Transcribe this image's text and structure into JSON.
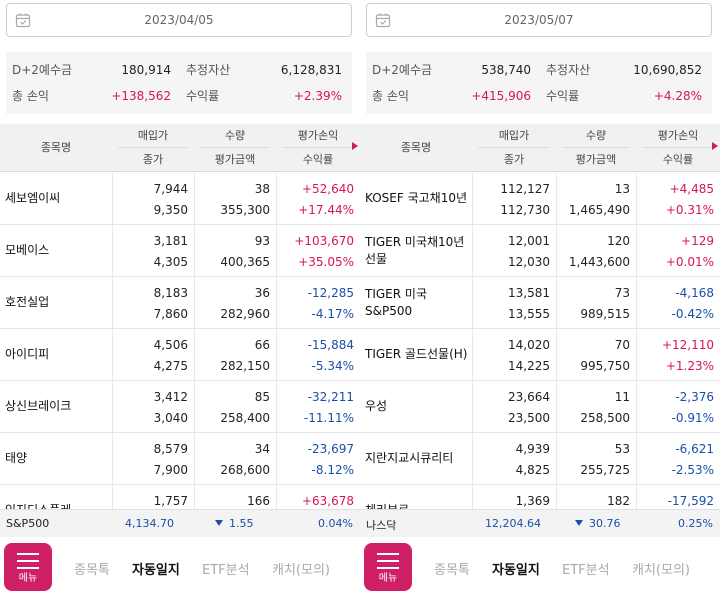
{
  "colors": {
    "positive": "#d7174f",
    "negative": "#1a4fa8",
    "menu": "#cf1f65"
  },
  "panels": [
    {
      "date": "2023/04/05",
      "summary": {
        "d2_label": "D+2예수금",
        "d2_value": "180,914",
        "asset_label": "추정자산",
        "asset_value": "6,128,831",
        "pl_label": "총 손익",
        "pl_value": "+138,562",
        "rate_label": "수익률",
        "rate_value": "+2.39%"
      },
      "headers": {
        "name": "종목명",
        "buy": "매입가",
        "close": "종가",
        "qty": "수량",
        "eval_amt": "평가금액",
        "eval_pl": "평가손익",
        "return": "수익률"
      },
      "rows": [
        {
          "name": "세보엠이씨",
          "buy": "7,944",
          "close": "9,350",
          "qty": "38",
          "eval_amt": "355,300",
          "pl": "+52,640",
          "rate": "+17.44%",
          "sign": "pos"
        },
        {
          "name": "모베이스",
          "buy": "3,181",
          "close": "4,305",
          "qty": "93",
          "eval_amt": "400,365",
          "pl": "+103,670",
          "rate": "+35.05%",
          "sign": "pos"
        },
        {
          "name": "호전실업",
          "buy": "8,183",
          "close": "7,860",
          "qty": "36",
          "eval_amt": "282,960",
          "pl": "-12,285",
          "rate": "-4.17%",
          "sign": "neg"
        },
        {
          "name": "아이디피",
          "buy": "4,506",
          "close": "4,275",
          "qty": "66",
          "eval_amt": "282,150",
          "pl": "-15,884",
          "rate": "-5.34%",
          "sign": "neg"
        },
        {
          "name": "상신브레이크",
          "buy": "3,412",
          "close": "3,040",
          "qty": "85",
          "eval_amt": "258,400",
          "pl": "-32,211",
          "rate": "-11.11%",
          "sign": "neg"
        },
        {
          "name": "태양",
          "buy": "8,579",
          "close": "7,900",
          "qty": "34",
          "eval_amt": "268,600",
          "pl": "-23,697",
          "rate": "-8.12%",
          "sign": "neg"
        },
        {
          "name": "인지디스플레",
          "buy": "1,757",
          "close": "",
          "qty": "166",
          "eval_amt": "",
          "pl": "+63,678",
          "rate": "",
          "sign": "pos"
        }
      ],
      "index": {
        "name": "S&P500",
        "value": "4,134.70",
        "change": "1.55",
        "rate": "0.04%"
      }
    },
    {
      "date": "2023/05/07",
      "summary": {
        "d2_label": "D+2예수금",
        "d2_value": "538,740",
        "asset_label": "추정자산",
        "asset_value": "10,690,852",
        "pl_label": "총 손익",
        "pl_value": "+415,906",
        "rate_label": "수익률",
        "rate_value": "+4.28%"
      },
      "headers": {
        "name": "종목명",
        "buy": "매입가",
        "close": "종가",
        "qty": "수량",
        "eval_amt": "평가금액",
        "eval_pl": "평가손익",
        "return": "수익률"
      },
      "rows": [
        {
          "name": "KOSEF 국고채10년",
          "buy": "112,127",
          "close": "112,730",
          "qty": "13",
          "eval_amt": "1,465,490",
          "pl": "+4,485",
          "rate": "+0.31%",
          "sign": "pos"
        },
        {
          "name": "TIGER 미국채10년선물",
          "buy": "12,001",
          "close": "12,030",
          "qty": "120",
          "eval_amt": "1,443,600",
          "pl": "+129",
          "rate": "+0.01%",
          "sign": "pos"
        },
        {
          "name": "TIGER 미국S&P500",
          "buy": "13,581",
          "close": "13,555",
          "qty": "73",
          "eval_amt": "989,515",
          "pl": "-4,168",
          "rate": "-0.42%",
          "sign": "neg"
        },
        {
          "name": "TIGER 골드선물(H)",
          "buy": "14,020",
          "close": "14,225",
          "qty": "70",
          "eval_amt": "995,750",
          "pl": "+12,110",
          "rate": "+1.23%",
          "sign": "pos"
        },
        {
          "name": "우성",
          "buy": "23,664",
          "close": "23,500",
          "qty": "11",
          "eval_amt": "258,500",
          "pl": "-2,376",
          "rate": "-0.91%",
          "sign": "neg"
        },
        {
          "name": "지란지교시큐리티",
          "buy": "4,939",
          "close": "4,825",
          "qty": "53",
          "eval_amt": "255,725",
          "pl": "-6,621",
          "rate": "-2.53%",
          "sign": "neg"
        },
        {
          "name": "체리부로",
          "buy": "1,369",
          "close": "",
          "qty": "182",
          "eval_amt": "",
          "pl": "-17,592",
          "rate": "",
          "sign": "neg"
        }
      ],
      "index": {
        "name": "나스닥",
        "value": "12,204.64",
        "change": "30.76",
        "rate": "0.25%"
      }
    }
  ],
  "nav": {
    "menu": "메뉴",
    "items": [
      "종목톡",
      "자동일지",
      "ETF분석",
      "캐치(모의)"
    ],
    "active_index": 1
  }
}
